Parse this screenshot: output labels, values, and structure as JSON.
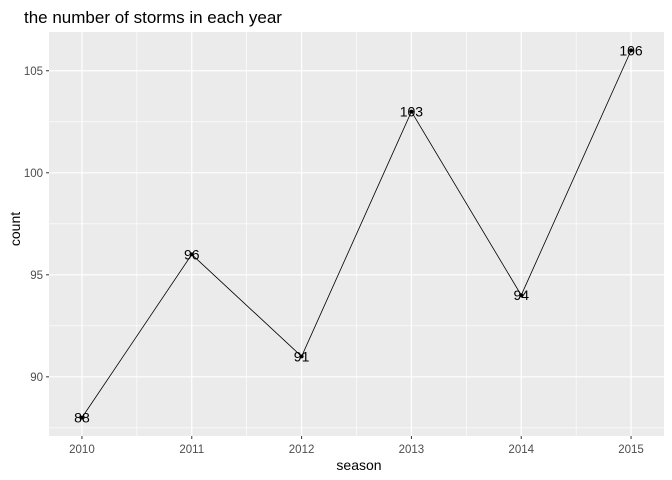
{
  "chart_data": {
    "type": "line",
    "title": "the number of storms in each year",
    "xlabel": "season",
    "ylabel": "count",
    "x": [
      2010,
      2011,
      2012,
      2013,
      2014,
      2015
    ],
    "categories": [
      "2010",
      "2011",
      "2012",
      "2013",
      "2014",
      "2015"
    ],
    "values": [
      88,
      96,
      91,
      103,
      94,
      106
    ],
    "data_labels": [
      "88",
      "96",
      "91",
      "103",
      "94",
      "106"
    ],
    "y_ticks": [
      90,
      95,
      100,
      105
    ],
    "y_tick_labels": [
      "90",
      "95",
      "100",
      "105"
    ],
    "xlim": [
      2009.7,
      2015.3
    ],
    "ylim": [
      87.1,
      106.9
    ],
    "grid": true,
    "colors": {
      "panel_background": "#ebebeb",
      "grid_major": "#ffffff",
      "line": "#000000",
      "point": "#000000"
    }
  }
}
